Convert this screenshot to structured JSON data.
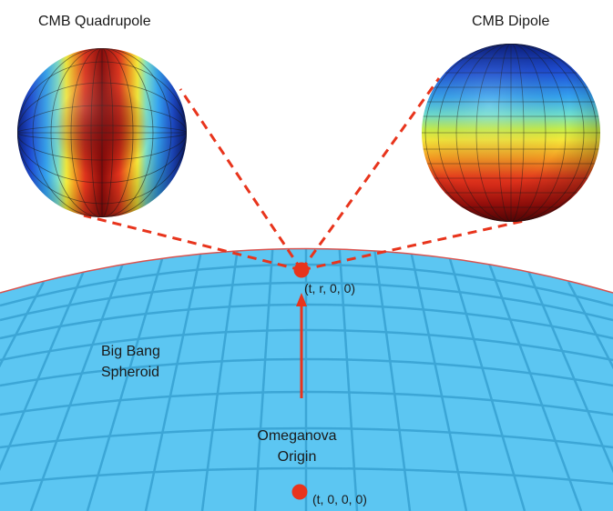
{
  "labels": {
    "quadrupole_title": "CMB Quadrupole",
    "dipole_title": "CMB Dipole",
    "observer_coords": "(t, r, 0, 0)",
    "origin_coords": "(t, 0, 0, 0)",
    "spheroid_line1": "Big Bang",
    "spheroid_line2": "Spheroid",
    "origin_line1": "Omeganova",
    "origin_line2": "Origin"
  },
  "colors": {
    "spheroid_fill": "#5cc6f2",
    "spheroid_grid": "#3ca6d6",
    "spheroid_rim": "#d9534f",
    "marker": "#e8341c",
    "dashed_lines": "#e8341c"
  }
}
